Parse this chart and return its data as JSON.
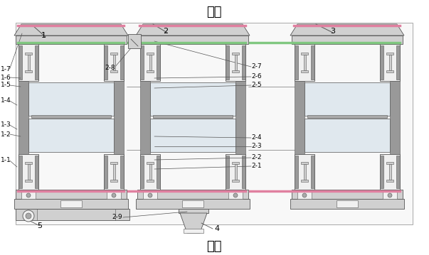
{
  "title_top": "外部",
  "title_bottom": "内部",
  "bg_color": "#ffffff",
  "lc": "#555555",
  "lg": "#d0d0d0",
  "mg": "#aaaaaa",
  "dk": "#999999",
  "pk": "#e080a0",
  "gk": "#80c880",
  "wh": "#f0f0f0",
  "figw": 6.03,
  "figh": 3.59,
  "dpi": 100
}
